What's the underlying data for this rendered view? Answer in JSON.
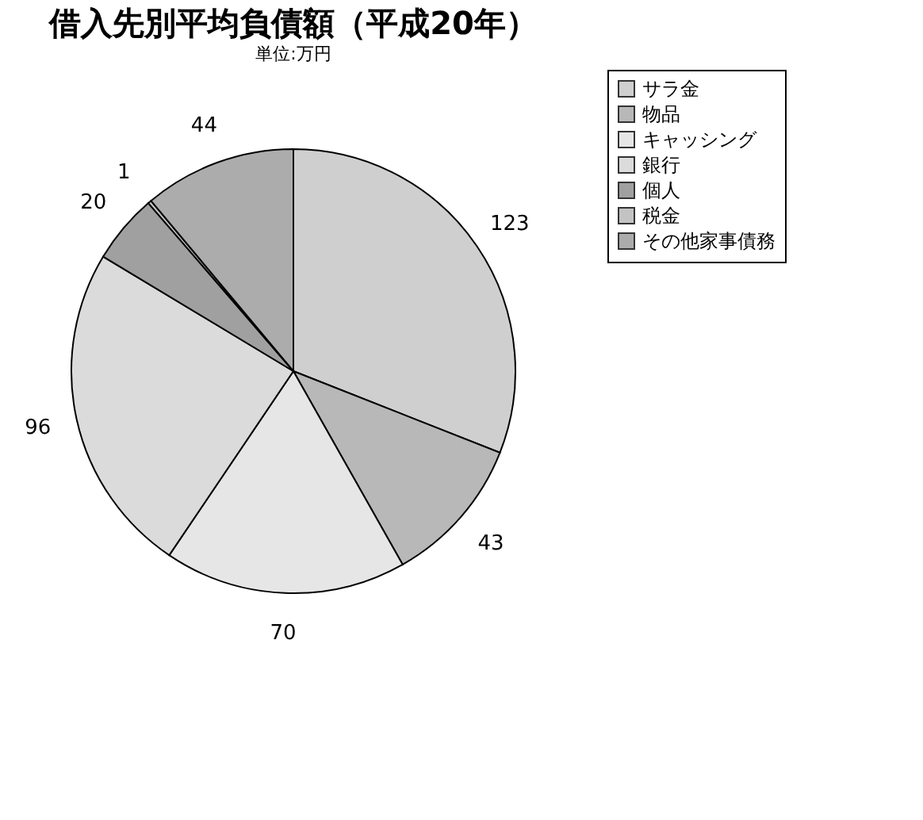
{
  "chart_data": {
    "type": "pie",
    "title": "借入先別平均負債額（平成20年）",
    "subtitle": "単位:万円",
    "categories": [
      "サラ金",
      "物品",
      "キャッシング",
      "銀行",
      "個人",
      "税金",
      "その他家事債務"
    ],
    "values": [
      123,
      43,
      70,
      96,
      20,
      1,
      44
    ],
    "colors": [
      "#cfcfcf",
      "#b8b8b8",
      "#e6e6e6",
      "#dbdbdb",
      "#a0a0a0",
      "#c3c3c3",
      "#acacac"
    ],
    "data_labels": true,
    "legend": "right"
  }
}
